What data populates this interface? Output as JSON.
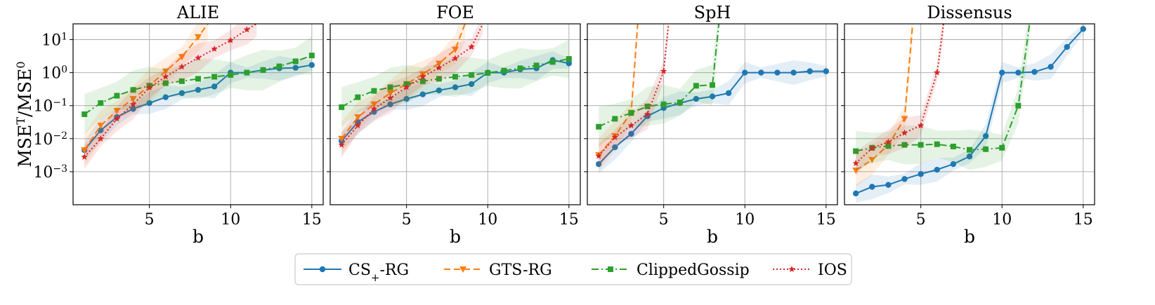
{
  "chart_data": {
    "type": "line",
    "y_scale": "log",
    "ylabel_base": "MSE",
    "ylabel_sup1": "T",
    "ylabel_sep": "/",
    "ylabel_sup2": "0",
    "ylim": [
      0.0001,
      30
    ],
    "xlim": [
      0.3,
      15.7
    ],
    "x_ticks": [
      5,
      10,
      15
    ],
    "y_ticks": [
      {
        "value": 0.001,
        "base": "10",
        "exp": "−3"
      },
      {
        "value": 0.01,
        "base": "10",
        "exp": "−2"
      },
      {
        "value": 0.1,
        "base": "10",
        "exp": "−1"
      },
      {
        "value": 1,
        "base": "10",
        "exp": "0"
      },
      {
        "value": 10,
        "base": "10",
        "exp": "1"
      }
    ],
    "series_styles": [
      {
        "name": "CS+-RG",
        "label_main": "CS",
        "label_sub": "+",
        "label_tail": "-RG",
        "color": "#1f77b4",
        "marker": "circle",
        "dash": ""
      },
      {
        "name": "GTS-RG",
        "label_main": "GTS-RG",
        "label_sub": "",
        "label_tail": "",
        "color": "#ff7f0e",
        "marker": "triangle-down",
        "dash": "9,5"
      },
      {
        "name": "ClippedGossip",
        "label_main": "ClippedGossip",
        "label_sub": "",
        "label_tail": "",
        "color": "#2ca02c",
        "marker": "square",
        "dash": "10,4,2,4"
      },
      {
        "name": "IOS",
        "label_main": "IOS",
        "label_sub": "",
        "label_tail": "",
        "color": "#d62728",
        "marker": "star",
        "dash": "2,3"
      }
    ],
    "panels": [
      {
        "title": "ALIE",
        "xlabel": "b",
        "series": [
          {
            "name": "CS+-RG",
            "x": [
              1,
              2,
              3,
              4,
              5,
              6,
              7,
              8,
              9,
              10,
              11,
              12,
              13,
              14,
              15
            ],
            "y": [
              0.0045,
              0.018,
              0.045,
              0.08,
              0.12,
              0.18,
              0.24,
              0.3,
              0.38,
              1.0,
              1.0,
              1.2,
              1.35,
              1.4,
              1.7
            ]
          },
          {
            "name": "GTS-RG",
            "x": [
              1,
              2,
              3,
              4,
              5,
              6,
              7,
              8,
              8.6
            ],
            "y": [
              0.0045,
              0.025,
              0.07,
              0.16,
              0.4,
              1.1,
              3.0,
              12.0,
              30
            ]
          },
          {
            "name": "ClippedGossip",
            "x": [
              1,
              2,
              3,
              4,
              5,
              6,
              7,
              8,
              9,
              10,
              11,
              12,
              13,
              14,
              15
            ],
            "y": [
              0.055,
              0.12,
              0.2,
              0.3,
              0.4,
              0.48,
              0.55,
              0.65,
              0.75,
              0.85,
              1.0,
              1.2,
              1.55,
              2.2,
              3.3
            ]
          },
          {
            "name": "IOS",
            "x": [
              1,
              2,
              3,
              4,
              5,
              6,
              7,
              8,
              9,
              10,
              11,
              11.6
            ],
            "y": [
              0.0028,
              0.01,
              0.04,
              0.11,
              0.35,
              0.75,
              1.5,
              2.8,
              5.2,
              9.5,
              20.0,
              30
            ]
          }
        ]
      },
      {
        "title": "FOE",
        "xlabel": "b",
        "series": [
          {
            "name": "CS+-RG",
            "x": [
              1,
              2,
              3,
              4,
              5,
              6,
              7,
              8,
              9,
              10,
              11,
              12,
              13,
              14,
              15
            ],
            "y": [
              0.0085,
              0.032,
              0.065,
              0.11,
              0.16,
              0.22,
              0.29,
              0.36,
              0.45,
              1.0,
              1.0,
              1.25,
              1.35,
              2.4,
              1.9
            ]
          },
          {
            "name": "GTS-RG",
            "x": [
              1,
              2,
              3,
              4,
              5,
              6,
              7,
              8,
              8.6
            ],
            "y": [
              0.01,
              0.045,
              0.11,
              0.24,
              0.45,
              0.9,
              1.9,
              5.0,
              30
            ]
          },
          {
            "name": "ClippedGossip",
            "x": [
              1,
              2,
              3,
              4,
              5,
              6,
              7,
              8,
              9,
              10,
              11,
              12,
              13,
              14,
              15
            ],
            "y": [
              0.09,
              0.18,
              0.28,
              0.36,
              0.45,
              0.55,
              0.65,
              0.75,
              0.85,
              0.98,
              1.15,
              1.35,
              1.65,
              2.1,
              2.6
            ]
          },
          {
            "name": "IOS",
            "x": [
              1,
              2,
              3,
              4,
              5,
              6,
              7,
              8,
              9,
              9.7
            ],
            "y": [
              0.0065,
              0.025,
              0.08,
              0.17,
              0.36,
              0.75,
              1.4,
              2.7,
              6.0,
              30
            ]
          }
        ]
      },
      {
        "title": "SpH",
        "xlabel": "b",
        "series": [
          {
            "name": "CS+-RG",
            "x": [
              1,
              2,
              3,
              4,
              5,
              6,
              7,
              8,
              9,
              10,
              11,
              12,
              13,
              14,
              15
            ],
            "y": [
              0.0017,
              0.0055,
              0.014,
              0.048,
              0.085,
              0.12,
              0.16,
              0.19,
              0.24,
              1.0,
              1.0,
              1.0,
              1.0,
              1.1,
              1.1
            ]
          },
          {
            "name": "GTS-RG",
            "x": [
              1,
              2,
              3,
              3.4
            ],
            "y": [
              0.0032,
              0.012,
              0.062,
              30
            ]
          },
          {
            "name": "ClippedGossip",
            "x": [
              1,
              2,
              3,
              4,
              5,
              6,
              7,
              8,
              8.4
            ],
            "y": [
              0.023,
              0.04,
              0.06,
              0.095,
              0.11,
              0.125,
              0.4,
              0.42,
              30
            ]
          },
          {
            "name": "IOS",
            "x": [
              1,
              2,
              3,
              4,
              5,
              5.3
            ],
            "y": [
              0.003,
              0.011,
              0.025,
              0.055,
              1.1,
              30
            ]
          }
        ]
      },
      {
        "title": "Dissensus",
        "xlabel": "b",
        "series": [
          {
            "name": "CS+-RG",
            "x": [
              1,
              2,
              3,
              4,
              5,
              6,
              7,
              8,
              9,
              10,
              11,
              12,
              13,
              14,
              15
            ],
            "y": [
              0.00022,
              0.00035,
              0.0004,
              0.0006,
              0.00085,
              0.00115,
              0.0017,
              0.0029,
              0.012,
              1.0,
              1.0,
              1.05,
              1.5,
              6.0,
              21.0
            ]
          },
          {
            "name": "GTS-RG",
            "x": [
              1,
              2,
              3,
              4,
              4.5
            ],
            "y": [
              0.0011,
              0.0023,
              0.0065,
              0.04,
              30
            ]
          },
          {
            "name": "ClippedGossip",
            "x": [
              1,
              2,
              3,
              4,
              5,
              6,
              7,
              8,
              9,
              10,
              11,
              11.7
            ],
            "y": [
              0.0042,
              0.0053,
              0.006,
              0.0065,
              0.0065,
              0.0068,
              0.0058,
              0.0046,
              0.0048,
              0.0053,
              0.1,
              30
            ]
          },
          {
            "name": "IOS",
            "x": [
              1,
              2,
              3,
              4,
              5,
              6,
              6.4
            ],
            "y": [
              0.0018,
              0.0052,
              0.008,
              0.015,
              0.025,
              1.0,
              30
            ]
          }
        ]
      }
    ]
  }
}
